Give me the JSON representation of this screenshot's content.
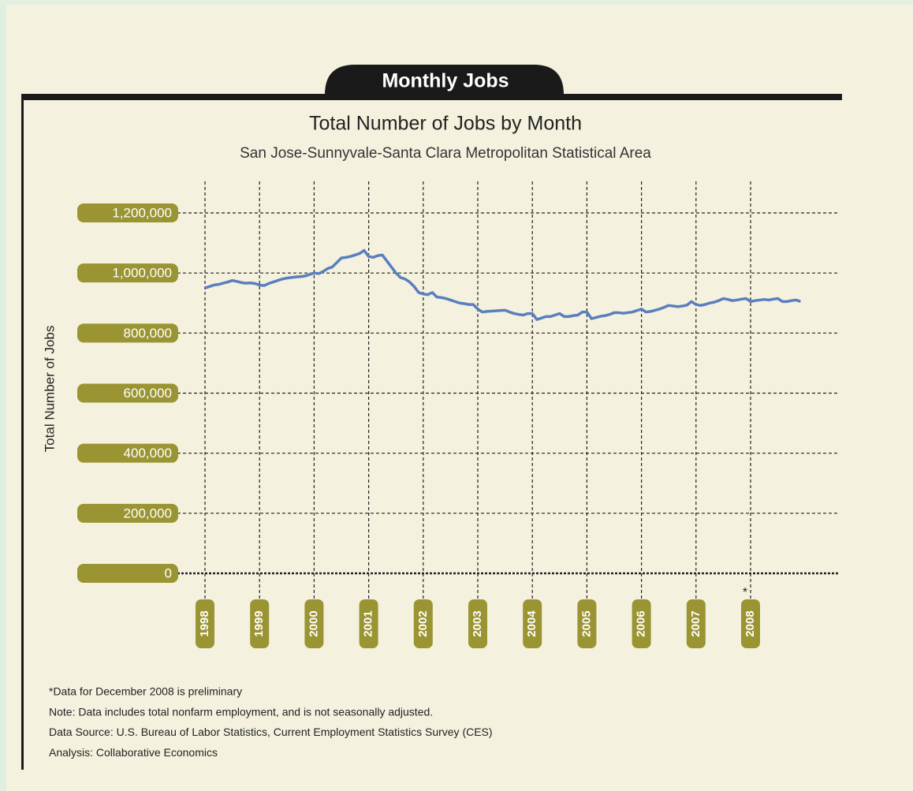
{
  "header": "Monthly Jobs",
  "chart_data": {
    "type": "line",
    "title": "Total Number of Jobs by Month",
    "subtitle": "San Jose-Sunnyvale-Santa Clara Metropolitan Statistical Area",
    "ylabel": "Total Number of Jobs",
    "annotation": "*",
    "color": "#5a7ebf",
    "grid": true,
    "ylim": [
      0,
      1200000
    ],
    "yticks": [
      0,
      {
        "value": 200000,
        "label": "200,000"
      },
      {
        "value": 400000,
        "label": "400,000"
      },
      {
        "value": 600000,
        "label": "600,000"
      },
      {
        "value": 800000,
        "label": "800,000"
      },
      {
        "value": 1000000,
        "label": "1,000,000"
      },
      {
        "value": 1200000,
        "label": "1,200,000"
      }
    ],
    "categories": [
      "1998",
      null,
      null,
      null,
      null,
      null,
      null,
      null,
      null,
      null,
      null,
      null,
      "1999",
      null,
      null,
      null,
      null,
      null,
      null,
      null,
      null,
      null,
      null,
      null,
      "2000",
      null,
      null,
      null,
      null,
      null,
      null,
      null,
      null,
      null,
      null,
      null,
      "2001",
      null,
      null,
      null,
      null,
      null,
      null,
      null,
      null,
      null,
      null,
      null,
      "2002",
      null,
      null,
      null,
      null,
      null,
      null,
      null,
      null,
      null,
      null,
      null,
      "2003",
      null,
      null,
      null,
      null,
      null,
      null,
      null,
      null,
      null,
      null,
      null,
      "2004",
      null,
      null,
      null,
      null,
      null,
      null,
      null,
      null,
      null,
      null,
      null,
      "2005",
      null,
      null,
      null,
      null,
      null,
      null,
      null,
      null,
      null,
      null,
      null,
      "2006",
      null,
      null,
      null,
      null,
      null,
      null,
      null,
      null,
      null,
      null,
      null,
      "2007",
      null,
      null,
      null,
      null,
      null,
      null,
      null,
      null,
      null,
      null,
      null,
      "2008",
      null,
      null,
      null,
      null,
      null,
      null,
      null,
      null,
      null,
      null,
      null
    ],
    "values": [
      950000,
      955000,
      960000,
      962000,
      966000,
      970000,
      975000,
      972000,
      968000,
      966000,
      967000,
      965000,
      960000,
      958000,
      965000,
      970000,
      975000,
      980000,
      983000,
      985000,
      987000,
      988000,
      990000,
      995000,
      1000000,
      998000,
      1005000,
      1015000,
      1020000,
      1035000,
      1050000,
      1052000,
      1055000,
      1060000,
      1065000,
      1075000,
      1055000,
      1052000,
      1058000,
      1060000,
      1040000,
      1020000,
      1000000,
      985000,
      980000,
      970000,
      955000,
      935000,
      930000,
      928000,
      935000,
      920000,
      918000,
      915000,
      910000,
      905000,
      900000,
      898000,
      895000,
      895000,
      880000,
      870000,
      872000,
      873000,
      874000,
      875000,
      876000,
      870000,
      865000,
      862000,
      860000,
      865000,
      865000,
      845000,
      850000,
      855000,
      855000,
      860000,
      865000,
      855000,
      855000,
      858000,
      860000,
      870000,
      870000,
      848000,
      852000,
      856000,
      858000,
      862000,
      868000,
      868000,
      866000,
      868000,
      870000,
      875000,
      880000,
      870000,
      872000,
      876000,
      880000,
      886000,
      892000,
      890000,
      888000,
      890000,
      893000,
      905000,
      895000,
      892000,
      895000,
      900000,
      903000,
      908000,
      915000,
      912000,
      908000,
      910000,
      913000,
      915000,
      905000,
      908000,
      910000,
      912000,
      910000,
      913000,
      915000,
      905000,
      905000,
      908000,
      910000,
      905000
    ],
    "notes": [
      "*Data for December 2008 is preliminary",
      "Note: Data includes total nonfarm employment, and is not seasonally adjusted.",
      "Data Source: U.S. Bureau of Labor Statistics, Current Employment Statistics Survey (CES)",
      "Analysis: Collaborative Economics"
    ]
  }
}
